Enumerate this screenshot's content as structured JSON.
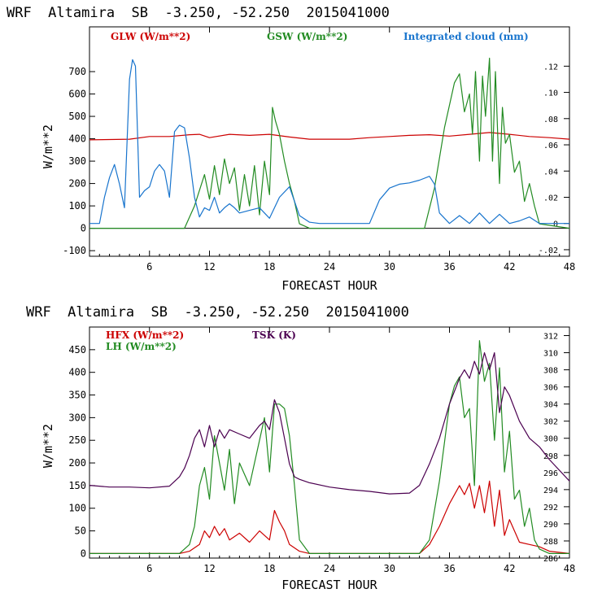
{
  "chart_data": [
    {
      "type": "line",
      "title": "WRF  Altamira  SB  -3.250, -52.250  2015041000",
      "xlabel": "FORECAST HOUR",
      "ylabel": "W/m**2",
      "xlim": [
        0,
        48
      ],
      "ylim": [
        -125,
        900
      ],
      "y2lim": [
        -0.025,
        0.15
      ],
      "xticks": [
        6,
        12,
        18,
        24,
        30,
        36,
        42,
        48
      ],
      "xtick_labels": [
        "6",
        "12",
        "18",
        "24",
        "30",
        "36",
        "42",
        "48"
      ],
      "yticks": [
        -100,
        0,
        100,
        200,
        300,
        400,
        500,
        600,
        700
      ],
      "ytick_labels": [
        "-100",
        "0",
        "100",
        "200",
        "300",
        "400",
        "500",
        "600",
        "700"
      ],
      "y2ticks": [
        -0.02,
        0,
        0.02,
        0.04,
        0.06,
        0.08,
        0.1,
        0.12
      ],
      "y2tick_labels": [
        "-.02",
        "0",
        ".02",
        ".04",
        ".06",
        ".08",
        ".10",
        ".12"
      ],
      "series": [
        {
          "name": "GLW (W/m**2)",
          "color": "#cc0000",
          "axis": "left",
          "x": [
            0,
            4,
            6,
            8,
            10,
            11,
            12,
            14,
            16,
            18,
            20,
            22,
            24,
            26,
            28,
            30,
            32,
            34,
            36,
            38,
            40,
            42,
            44,
            46,
            48
          ],
          "y": [
            395,
            398,
            410,
            410,
            418,
            420,
            405,
            420,
            415,
            420,
            408,
            398,
            398,
            398,
            405,
            410,
            415,
            418,
            412,
            420,
            428,
            420,
            410,
            405,
            398
          ]
        },
        {
          "name": "GSW (W/m**2)",
          "color": "#228b22",
          "axis": "left",
          "x": [
            0,
            9.5,
            10.5,
            11.5,
            12,
            12.5,
            13,
            13.5,
            14,
            14.5,
            15,
            15.5,
            16,
            16.5,
            17,
            17.5,
            18,
            18.3,
            18.6,
            19,
            19.5,
            20,
            20.5,
            21,
            22,
            24,
            33.5,
            34.5,
            35.5,
            36.5,
            37,
            37.5,
            38,
            38.3,
            38.6,
            39,
            39.3,
            39.6,
            40,
            40.3,
            40.6,
            41,
            41.3,
            41.6,
            42,
            42.5,
            43,
            43.5,
            44,
            44.5,
            45,
            48
          ],
          "y": [
            0,
            0,
            100,
            240,
            130,
            280,
            150,
            310,
            200,
            270,
            80,
            240,
            100,
            280,
            60,
            300,
            150,
            540,
            480,
            420,
            300,
            200,
            120,
            20,
            0,
            0,
            0,
            180,
            450,
            650,
            690,
            520,
            600,
            420,
            700,
            300,
            680,
            500,
            760,
            300,
            700,
            200,
            540,
            380,
            420,
            250,
            300,
            120,
            200,
            100,
            20,
            0
          ]
        },
        {
          "name": "Integrated cloud (mm)",
          "color": "#1874cd",
          "axis": "right",
          "x": [
            0,
            1,
            1.5,
            2,
            2.5,
            3,
            3.5,
            4,
            4.3,
            4.6,
            5,
            5.5,
            6,
            6.5,
            7,
            7.5,
            8,
            8.5,
            9,
            9.5,
            10,
            10.5,
            11,
            11.5,
            12,
            12.5,
            13,
            13.5,
            14,
            14.5,
            15,
            16,
            17,
            18,
            19,
            20,
            21,
            22,
            23,
            28,
            29,
            30,
            31,
            32,
            33,
            34,
            34.5,
            35,
            36,
            37,
            38,
            39,
            40,
            41,
            42,
            43,
            44,
            45,
            48
          ],
          "y": [
            0,
            0.0,
            0.02,
            0.035,
            0.045,
            0.03,
            0.012,
            0.11,
            0.125,
            0.12,
            0.02,
            0.025,
            0.028,
            0.04,
            0.045,
            0.04,
            0.02,
            0.07,
            0.075,
            0.073,
            0.05,
            0.02,
            0.005,
            0.012,
            0.01,
            0.02,
            0.008,
            0.012,
            0.015,
            0.012,
            0.008,
            0.01,
            0.012,
            0.004,
            0.02,
            0.028,
            0.006,
            0.001,
            0.0,
            0.0,
            0.018,
            0.027,
            0.03,
            0.031,
            0.033,
            0.036,
            0.03,
            0.008,
            0.0,
            0.006,
            0.0,
            0.008,
            0.0,
            0.007,
            0.0,
            0.002,
            0.005,
            0.0,
            0.0
          ]
        }
      ]
    },
    {
      "type": "line",
      "title": "WRF  Altamira  SB  -3.250, -52.250  2015041000",
      "xlabel": "FORECAST HOUR",
      "ylabel": "W/m**2",
      "xlim": [
        0,
        48
      ],
      "ylim": [
        -10,
        500
      ],
      "y2lim": [
        286,
        313
      ],
      "xticks": [
        6,
        12,
        18,
        24,
        30,
        36,
        42,
        48
      ],
      "xtick_labels": [
        "6",
        "12",
        "18",
        "24",
        "30",
        "36",
        "42",
        "48"
      ],
      "yticks": [
        0,
        50,
        100,
        150,
        200,
        250,
        300,
        350,
        400,
        450
      ],
      "ytick_labels": [
        "0",
        "50",
        "100",
        "150",
        "200",
        "250",
        "300",
        "350",
        "400",
        "450"
      ],
      "y2ticks": [
        286,
        288,
        290,
        292,
        294,
        296,
        298,
        300,
        302,
        304,
        306,
        308,
        310,
        312
      ],
      "y2tick_labels": [
        "286",
        "288",
        "290",
        "292",
        "294",
        "296",
        "298",
        "300",
        "302",
        "304",
        "306",
        "308",
        "310",
        "312"
      ],
      "series": [
        {
          "name": "HFX (W/m**2)",
          "color": "#cc0000",
          "axis": "left",
          "x": [
            0,
            9,
            10,
            11,
            11.5,
            12,
            12.5,
            13,
            13.5,
            14,
            15,
            16,
            17,
            18,
            18.5,
            19,
            19.5,
            20,
            21,
            22,
            24,
            33,
            34,
            35,
            36,
            37,
            37.5,
            38,
            38.5,
            39,
            39.5,
            40,
            40.5,
            41,
            41.5,
            42,
            43,
            44,
            45,
            46,
            48
          ],
          "y": [
            0,
            0,
            5,
            20,
            50,
            35,
            60,
            40,
            55,
            30,
            45,
            25,
            50,
            30,
            95,
            70,
            50,
            20,
            5,
            0,
            0,
            0,
            20,
            60,
            110,
            150,
            130,
            155,
            100,
            150,
            90,
            160,
            60,
            140,
            40,
            75,
            25,
            20,
            15,
            5,
            0
          ]
        },
        {
          "name": "LH (W/m**2)",
          "color": "#228b22",
          "axis": "left",
          "x": [
            0,
            9,
            10,
            10.5,
            11,
            11.5,
            12,
            12.5,
            13,
            13.5,
            14,
            14.5,
            15,
            16,
            17,
            17.5,
            18,
            18.5,
            19,
            19.5,
            20,
            20.5,
            21,
            22,
            24,
            33,
            34,
            35,
            36,
            36.5,
            37,
            37.5,
            38,
            38.5,
            39,
            39.5,
            40,
            40.5,
            41,
            41.5,
            42,
            42.5,
            43,
            43.5,
            44,
            44.5,
            45,
            46,
            48
          ],
          "y": [
            0,
            0,
            20,
            60,
            150,
            190,
            120,
            260,
            200,
            140,
            230,
            110,
            200,
            150,
            250,
            300,
            180,
            330,
            330,
            320,
            260,
            150,
            30,
            0,
            0,
            0,
            30,
            160,
            330,
            370,
            390,
            300,
            320,
            150,
            470,
            380,
            420,
            250,
            410,
            180,
            270,
            120,
            140,
            60,
            100,
            30,
            10,
            0,
            0
          ]
        },
        {
          "name": "TSK (K)",
          "color": "#4b0050",
          "axis": "right",
          "x": [
            0,
            2,
            4,
            6,
            8,
            9,
            9.5,
            10,
            10.5,
            11,
            11.5,
            12,
            12.5,
            13,
            13.5,
            14,
            15,
            16,
            17,
            17.5,
            18,
            18.5,
            19,
            19.5,
            20,
            20.5,
            21,
            22,
            24,
            26,
            28,
            30,
            32,
            33,
            34,
            35,
            36,
            37,
            37.5,
            38,
            38.5,
            39,
            39.5,
            40,
            40.5,
            41,
            41.5,
            42,
            43,
            44,
            45,
            46,
            48
          ],
          "y": [
            294.5,
            294.3,
            294.3,
            294.2,
            294.4,
            295.5,
            296.5,
            298,
            300,
            301,
            299,
            301.5,
            299,
            301,
            300,
            301,
            300.5,
            300,
            301.5,
            302,
            301,
            304.5,
            303,
            300,
            297,
            295.5,
            295.2,
            294.8,
            294.3,
            294.0,
            293.8,
            293.5,
            293.6,
            294.5,
            297,
            300,
            304,
            307,
            308,
            307,
            309,
            307.5,
            310,
            308,
            310,
            303,
            306,
            305,
            302,
            300,
            299,
            297.5,
            295
          ]
        }
      ]
    }
  ]
}
